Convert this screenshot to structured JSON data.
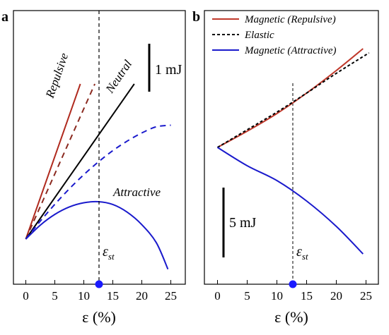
{
  "chart_data": [
    {
      "panel": "a",
      "type": "line",
      "xlabel": "ε (%)",
      "ylabel": "",
      "xlim": [
        -2,
        27
      ],
      "xticks": [
        0,
        5,
        10,
        15,
        20,
        25
      ],
      "grid": false,
      "scale_bar_label": "1 mJ",
      "marker_label": "ε",
      "marker_label_sub": "st",
      "marker_x": 12.5,
      "series": [
        {
          "name": "Repulsive",
          "color": "#b02a1e",
          "dash": "solid",
          "x": [
            0,
            9.4
          ],
          "y": [
            0,
            100
          ]
        },
        {
          "name": "",
          "color": "#8b2a20",
          "dash": "dashed",
          "x": [
            0,
            11.9
          ],
          "y": [
            0,
            100
          ]
        },
        {
          "name": "Neutral",
          "color": "#000000",
          "dash": "solid",
          "x": [
            0,
            18.7
          ],
          "y": [
            0,
            100
          ]
        },
        {
          "name": "",
          "color": "#1a1acc",
          "dash": "dashed",
          "x": [
            0,
            2.5,
            5,
            7.5,
            10,
            12.5,
            15,
            17.5,
            20,
            22.5,
            25
          ],
          "y": [
            0,
            11.6,
            22.4,
            32.4,
            41.5,
            49.7,
            57.0,
            63.2,
            68.4,
            72.4,
            73.4
          ]
        },
        {
          "name": "Attractive",
          "color": "#1a1acc",
          "dash": "solid",
          "x": [
            0,
            2.5,
            5,
            7.5,
            10,
            12.5,
            15,
            17.5,
            20,
            22.5,
            24.5
          ],
          "y": [
            0,
            9.0,
            15.9,
            20.7,
            23.4,
            24.1,
            22.3,
            17.3,
            9.3,
            -2.3,
            -19.4
          ]
        }
      ]
    },
    {
      "panel": "b",
      "type": "line",
      "xlabel": "ε (%)",
      "ylabel": "",
      "xlim": [
        -2,
        27
      ],
      "xticks": [
        0,
        5,
        10,
        15,
        20,
        25
      ],
      "grid": false,
      "scale_bar_label": "5 mJ",
      "marker_label": "ε",
      "marker_label_sub": "st",
      "marker_x": 12.5,
      "legend": [
        "Magnetic (Repulsive)",
        "Elastic",
        "Magnetic (Attractive)"
      ],
      "series": [
        {
          "name": "Magnetic (Repulsive)",
          "color": "#c0392b",
          "dash": "solid",
          "x": [
            0,
            5,
            10,
            15,
            20,
            24.5
          ],
          "y": [
            0,
            23,
            48,
            77,
            109,
            140
          ]
        },
        {
          "name": "Elastic",
          "color": "#000000",
          "dash": "dashed",
          "x": [
            0,
            5,
            10,
            15,
            20,
            25.5
          ],
          "y": [
            0,
            25,
            50,
            77,
            105,
            134
          ]
        },
        {
          "name": "Magnetic (Attractive)",
          "color": "#1a1acc",
          "dash": "solid",
          "x": [
            0,
            5,
            10,
            15,
            20,
            24.5
          ],
          "y": [
            0,
            -26,
            -47,
            -76,
            -112,
            -151
          ]
        }
      ]
    }
  ]
}
